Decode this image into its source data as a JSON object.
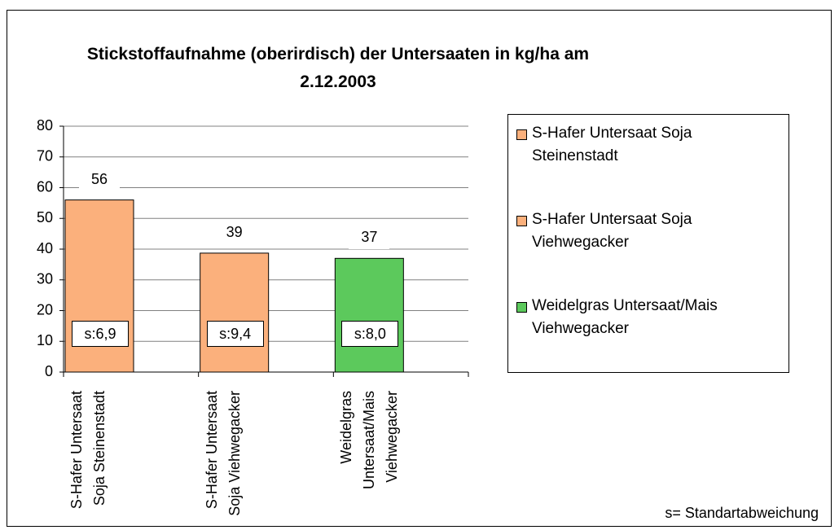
{
  "chart_data": {
    "type": "bar",
    "title": "Stickstoffaufnahme (oberirdisch) der Untersaaten in kg/ha am",
    "subtitle": "2.12.2003",
    "categories": [
      "S-Hafer Untersaat Soja Steinenstadt",
      "S-Hafer Untersaat Soja Viehwegacker",
      "Weidelgras Untersaat/Mais Viehwegacker"
    ],
    "values": [
      56,
      38.7,
      37
    ],
    "value_labels": [
      "56",
      "39",
      "37"
    ],
    "sd_labels": [
      "s:6,9",
      "s:9,4",
      "s:8,0"
    ],
    "colors": [
      "#fbb07c",
      "#fbb07c",
      "#5cc95c"
    ],
    "ylim": [
      0,
      80
    ],
    "yticks": [
      0,
      10,
      20,
      30,
      40,
      50,
      60,
      70,
      80
    ],
    "grid": true,
    "legend": "right",
    "annotation": "s= Standartabweichung"
  }
}
